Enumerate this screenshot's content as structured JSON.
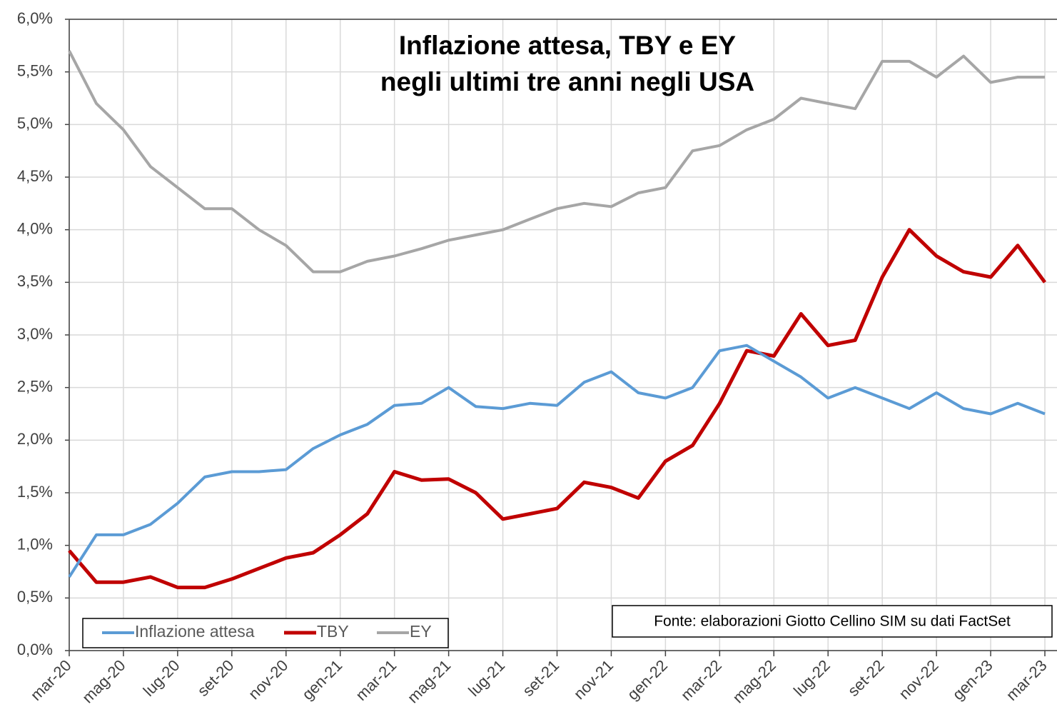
{
  "chart_data": {
    "type": "line",
    "title": [
      "Inflazione attesa, TBY e EY",
      "negli ultimi tre anni negli USA"
    ],
    "note": "Fonte: elaborazioni Giotto Cellino SIM su dati FactSet",
    "categories": [
      "mar-20",
      null,
      "mag-20",
      null,
      "lug-20",
      null,
      "set-20",
      null,
      "nov-20",
      null,
      "gen-21",
      null,
      "mar-21",
      null,
      "mag-21",
      null,
      "lug-21",
      null,
      "set-21",
      null,
      "nov-21",
      null,
      "gen-22",
      null,
      "mar-22",
      null,
      "mag-22",
      null,
      "lug-22",
      null,
      "set-22",
      null,
      "nov-22",
      null,
      "gen-23",
      null,
      "mar-23"
    ],
    "series": [
      {
        "name": "Inflazione attesa",
        "color": "#5b9bd5",
        "values": [
          0.7,
          1.1,
          1.1,
          1.2,
          1.4,
          1.65,
          1.7,
          1.7,
          1.72,
          1.92,
          2.05,
          2.15,
          2.33,
          2.35,
          2.5,
          2.32,
          2.3,
          2.35,
          2.33,
          2.55,
          2.65,
          2.45,
          2.4,
          2.5,
          2.85,
          2.9,
          2.75,
          2.6,
          2.4,
          2.5,
          2.4,
          2.3,
          2.45,
          2.3,
          2.25,
          2.35,
          2.25
        ]
      },
      {
        "name": "TBY",
        "color": "#c00000",
        "values": [
          0.95,
          0.65,
          0.65,
          0.7,
          0.6,
          0.6,
          0.68,
          0.78,
          0.88,
          0.93,
          1.1,
          1.3,
          1.7,
          1.62,
          1.63,
          1.5,
          1.25,
          1.3,
          1.35,
          1.6,
          1.55,
          1.45,
          1.8,
          1.95,
          2.35,
          2.85,
          2.8,
          3.2,
          2.9,
          2.95,
          3.55,
          4.0,
          3.75,
          3.6,
          3.55,
          3.85,
          3.5
        ]
      },
      {
        "name": "EY",
        "color": "#a6a6a6",
        "values": [
          5.7,
          5.2,
          4.95,
          4.6,
          4.4,
          4.2,
          4.2,
          4.0,
          3.85,
          3.6,
          3.6,
          3.7,
          3.75,
          3.82,
          3.9,
          3.95,
          4.0,
          4.1,
          4.2,
          4.25,
          4.22,
          4.35,
          4.4,
          4.75,
          4.8,
          4.95,
          5.05,
          5.25,
          5.2,
          5.15,
          5.6,
          5.6,
          5.45,
          5.65,
          5.4,
          5.45,
          5.45
        ]
      }
    ],
    "ylim": [
      0,
      6
    ],
    "yticks": [
      {
        "value": 0,
        "label": "0,0%"
      },
      {
        "value": 0.5,
        "label": "0,5%"
      },
      {
        "value": 1,
        "label": "1,0%"
      },
      {
        "value": 1.5,
        "label": "1,5%"
      },
      {
        "value": 2,
        "label": "2,0%"
      },
      {
        "value": 2.5,
        "label": "2,5%"
      },
      {
        "value": 3,
        "label": "3,0%"
      },
      {
        "value": 3.5,
        "label": "3,5%"
      },
      {
        "value": 4,
        "label": "4,0%"
      },
      {
        "value": 4.5,
        "label": "4,5%"
      },
      {
        "value": 5,
        "label": "5,0%"
      },
      {
        "value": 5.5,
        "label": "5,5%"
      },
      {
        "value": 6,
        "label": "6,0%"
      }
    ],
    "grid": true,
    "legend": "bottom-left"
  }
}
